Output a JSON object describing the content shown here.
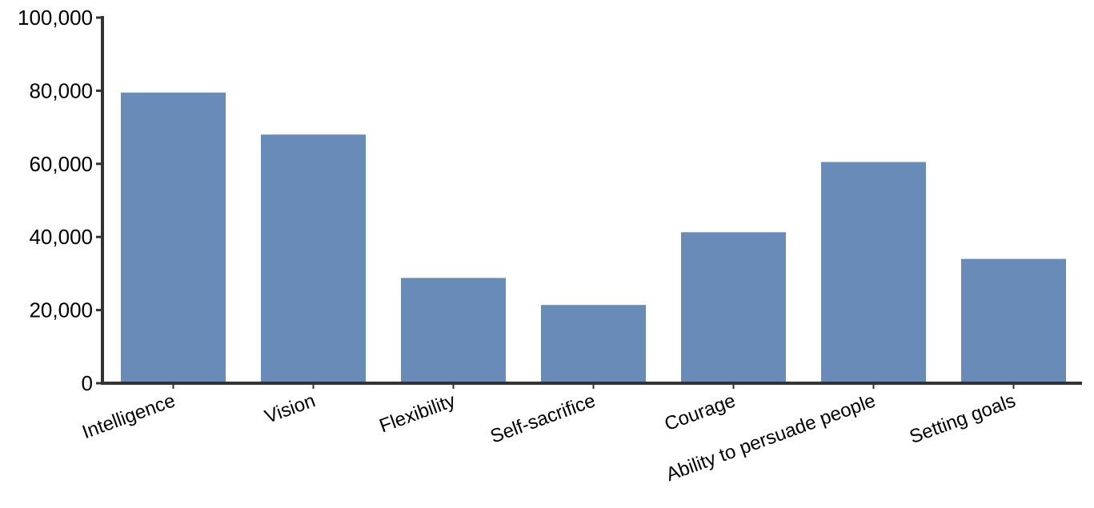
{
  "chart_data": {
    "type": "bar",
    "title": "",
    "xlabel": "",
    "ylabel": "",
    "categories": [
      "Intelligence",
      "Vision",
      "Flexibility",
      "Self-sacrifice",
      "Courage",
      "Ability to persuade people",
      "Setting goals"
    ],
    "values": [
      79500,
      68000,
      28800,
      21400,
      41300,
      60500,
      34000
    ],
    "ylim": [
      0,
      100000
    ],
    "yticks": [
      0,
      20000,
      40000,
      60000,
      80000,
      100000
    ],
    "ytick_labels": [
      "0",
      "20,000",
      "40,000",
      "60,000",
      "80,000",
      "100,000"
    ],
    "grid": false,
    "legend": "none",
    "bar_color": "#688cb7",
    "axis_color": "#333333"
  }
}
